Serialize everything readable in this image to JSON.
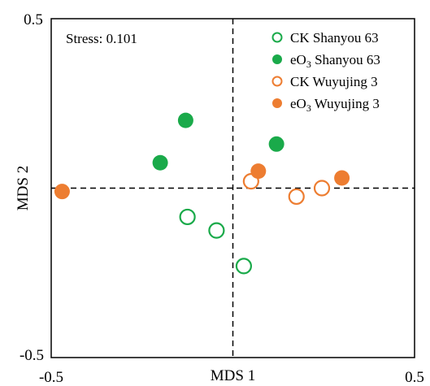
{
  "chart_data": {
    "type": "scatter",
    "title": "",
    "xlabel": "MDS 1",
    "ylabel": "MDS 2",
    "xlim": [
      -0.5,
      0.5
    ],
    "ylim": [
      -0.5,
      0.5
    ],
    "x_ticks": [
      "-0.5",
      "0.5"
    ],
    "y_ticks": [
      "0.5",
      "-0.5"
    ],
    "annotation": "Stress: 0.101",
    "reference_lines": {
      "x": 0,
      "y": 0,
      "style": "dashed"
    },
    "legend_position": "top-right",
    "series": [
      {
        "name": "CK Shanyou 63",
        "name_parts": [
          "CK Shanyou 63",
          ""
        ],
        "color": "#1aaa4a",
        "marker": "open-circle",
        "x": [
          -0.125,
          -0.045,
          0.03
        ],
        "y": [
          -0.085,
          -0.125,
          -0.23
        ]
      },
      {
        "name": "eO3 Shanyou 63",
        "name_parts": [
          "eO",
          "3",
          " Shanyou 63"
        ],
        "color": "#1aaa4a",
        "marker": "filled-circle",
        "x": [
          -0.13,
          -0.2,
          0.12
        ],
        "y": [
          0.2,
          0.075,
          0.13
        ]
      },
      {
        "name": "CK Wuyujing 3",
        "name_parts": [
          "CK Wuyujing 3",
          ""
        ],
        "color": "#ed7d31",
        "marker": "open-circle",
        "x": [
          0.05,
          0.175,
          0.245
        ],
        "y": [
          0.02,
          -0.025,
          0.0
        ]
      },
      {
        "name": "eO3 Wuyujing 3",
        "name_parts": [
          "eO",
          "3",
          " Wuyujing 3"
        ],
        "color": "#ed7d31",
        "marker": "filled-circle",
        "x": [
          -0.47,
          0.07,
          0.3
        ],
        "y": [
          -0.01,
          0.05,
          0.03
        ]
      }
    ]
  }
}
